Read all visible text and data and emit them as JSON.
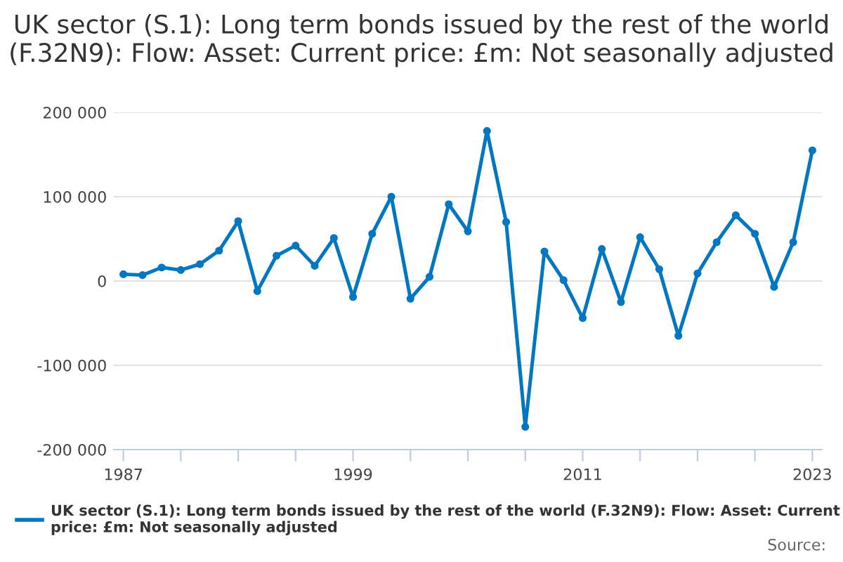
{
  "chart_data": {
    "type": "line",
    "title": "UK sector (S.1): Long term bonds issued by the rest of the world (F.32N9): Flow: Asset: Current price: £m: Not seasonally adjusted",
    "x": [
      1987,
      1988,
      1989,
      1990,
      1991,
      1992,
      1993,
      1994,
      1995,
      1996,
      1997,
      1998,
      1999,
      2000,
      2001,
      2002,
      2003,
      2004,
      2005,
      2006,
      2007,
      2008,
      2009,
      2010,
      2011,
      2012,
      2013,
      2014,
      2015,
      2016,
      2017,
      2018,
      2019,
      2020,
      2021,
      2022,
      2023
    ],
    "series": [
      {
        "name": "UK sector (S.1): Long term bonds issued by the rest of the world (F.32N9): Flow: Asset: Current price: £m: Not seasonally adjusted",
        "color": "#0077c0",
        "values": [
          8000,
          7000,
          16000,
          13000,
          20000,
          36000,
          71000,
          -12000,
          30000,
          42000,
          18000,
          51000,
          -19000,
          56000,
          100000,
          -21000,
          5000,
          91000,
          59000,
          178000,
          70000,
          -173000,
          35000,
          1000,
          -44000,
          38000,
          -25000,
          52000,
          14000,
          -65000,
          9000,
          46000,
          78000,
          56000,
          -7000,
          46000,
          155000
        ]
      }
    ],
    "xlim": [
      1986.5,
      2023.5
    ],
    "xticks": [
      1987,
      {
        "value": 1990,
        "label": null
      },
      {
        "value": 1993,
        "label": null
      },
      {
        "value": 1996,
        "label": null
      },
      1999,
      {
        "value": 2002,
        "label": null
      },
      {
        "value": 2005,
        "label": null
      },
      {
        "value": 2008,
        "label": null
      },
      2011,
      {
        "value": 2014,
        "label": null
      },
      {
        "value": 2017,
        "label": null
      },
      {
        "value": 2020,
        "label": null
      },
      2023
    ],
    "ylim": [
      -200000,
      200000
    ],
    "yticks": [
      {
        "value": -200000,
        "label": "-200 000"
      },
      {
        "value": -100000,
        "label": "-100 000"
      },
      0,
      {
        "value": 100000,
        "label": "100 000"
      },
      {
        "value": 200000,
        "label": "200 000"
      }
    ],
    "grid": "y",
    "legend": "bottom",
    "marker": "circle",
    "line_style": "solid",
    "annotations": [
      "Source:"
    ]
  }
}
